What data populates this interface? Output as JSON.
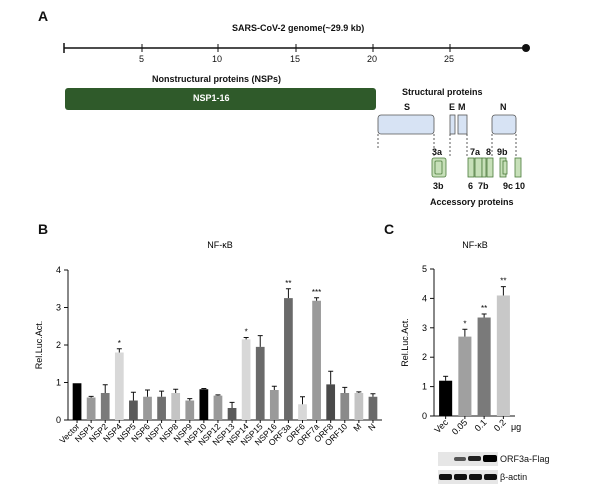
{
  "panels": {
    "a": "A",
    "b": "B",
    "c": "C"
  },
  "genome": {
    "title": "SARS-CoV-2 genome(~29.9 kb)",
    "ticks": [
      "5",
      "10",
      "15",
      "20",
      "25"
    ],
    "nsp_heading": "Nonstructural proteins (NSPs)",
    "nsp_bar": "NSP1-16",
    "structural_heading": "Structural proteins",
    "structural": [
      "S",
      "E",
      "M",
      "N"
    ],
    "accessory_heading": "Accessory proteins",
    "accessory_top": [
      "3a",
      "7a",
      "8",
      "9b"
    ],
    "accessory_bottom": [
      "3b",
      "6",
      "7b",
      "9c",
      "10"
    ],
    "colors": {
      "nsp": "#2f5a2a",
      "structural": "#d7e3f4",
      "accessory": "#c7e0b9"
    }
  },
  "chart_data": [
    {
      "type": "bar",
      "title": "NF-κB",
      "ylabel": "Rel.Luc.Act.",
      "ylim": [
        0,
        4
      ],
      "yticks": [
        "0",
        "1",
        "2",
        "3",
        "4"
      ],
      "categories": [
        "Vector",
        "NSP1",
        "NSP2",
        "NSP4",
        "NSP5",
        "NSP6",
        "NSP7",
        "NSP8",
        "NSP9",
        "NSP10",
        "NSP12",
        "NSP13",
        "NSP14",
        "NSP15",
        "NSP16",
        "ORF3a",
        "ORF6",
        "ORF7a",
        "ORF8",
        "ORF10",
        "M",
        "N"
      ],
      "values": [
        0.98,
        0.6,
        0.72,
        1.8,
        0.52,
        0.62,
        0.62,
        0.72,
        0.52,
        0.82,
        0.65,
        0.32,
        2.15,
        1.95,
        0.8,
        3.25,
        0.42,
        3.18,
        0.95,
        0.72,
        0.72,
        0.62
      ],
      "errors": [
        0,
        0.03,
        0.22,
        0.1,
        0.22,
        0.18,
        0.15,
        0.1,
        0.05,
        0.02,
        0.02,
        0.15,
        0.05,
        0.3,
        0.1,
        0.25,
        0.2,
        0.08,
        0.35,
        0.15,
        0.03,
        0.08
      ],
      "colors": [
        "#000000",
        "#9a9a9a",
        "#7a7a7a",
        "#d8d8d8",
        "#5a5a5a",
        "#9a9a9a",
        "#707070",
        "#c4c4c4",
        "#9a9a9a",
        "#000000",
        "#9a9a9a",
        "#5a5a5a",
        "#d8d8d8",
        "#6a6a6a",
        "#9a9a9a",
        "#6a6a6a",
        "#d8d8d8",
        "#9a9a9a",
        "#4a4a4a",
        "#8a8a8a",
        "#c4c4c4",
        "#6a6a6a"
      ],
      "significance": {
        "NSP4": "*",
        "NSP14": "*",
        "ORF3a": "**",
        "ORF7a": "***"
      }
    },
    {
      "type": "bar",
      "title": "NF-κB",
      "ylabel": "Rel.Luc.Act.",
      "ylim": [
        0,
        5
      ],
      "yticks": [
        "0",
        "1",
        "2",
        "3",
        "4",
        "5"
      ],
      "categories": [
        "Vec",
        "0.05",
        "0.1",
        "0.2"
      ],
      "category_unit": "μg",
      "values": [
        1.2,
        2.7,
        3.35,
        4.1
      ],
      "errors": [
        0.15,
        0.25,
        0.12,
        0.3
      ],
      "colors": [
        "#000000",
        "#a0a0a0",
        "#7a7a7a",
        "#c8c8c8"
      ],
      "significance": {
        "0.05": "*",
        "0.1": "**",
        "0.2": "**"
      }
    }
  ],
  "blot": {
    "rows": [
      "ORF3a-Flag",
      "β-actin"
    ]
  }
}
